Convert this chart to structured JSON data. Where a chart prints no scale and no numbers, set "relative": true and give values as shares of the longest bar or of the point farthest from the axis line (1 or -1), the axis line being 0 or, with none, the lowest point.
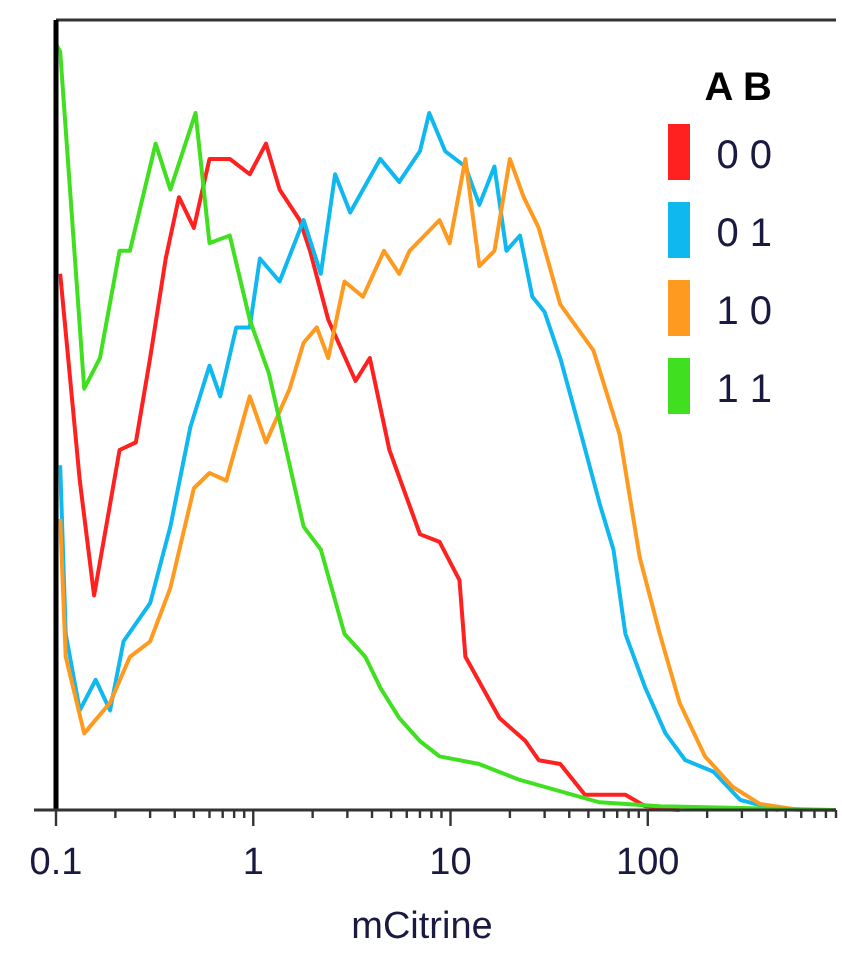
{
  "chart_data": {
    "type": "line",
    "relative": true,
    "xlabel": "mCitrine",
    "log": "x",
    "xlim": [
      0.1,
      900
    ],
    "xticks": [
      0.1,
      {
        "value": 0.2,
        "label": null
      },
      {
        "value": 0.3,
        "label": null
      },
      {
        "value": 0.4,
        "label": null
      },
      {
        "value": 0.5,
        "label": null
      },
      {
        "value": 0.6,
        "label": null
      },
      {
        "value": 0.7,
        "label": null
      },
      {
        "value": 0.8,
        "label": null
      },
      {
        "value": 0.9,
        "label": null
      },
      1,
      {
        "value": 2,
        "label": null
      },
      {
        "value": 3,
        "label": null
      },
      {
        "value": 4,
        "label": null
      },
      {
        "value": 5,
        "label": null
      },
      {
        "value": 6,
        "label": null
      },
      {
        "value": 7,
        "label": null
      },
      {
        "value": 8,
        "label": null
      },
      {
        "value": 9,
        "label": null
      },
      10,
      {
        "value": 20,
        "label": null
      },
      {
        "value": 30,
        "label": null
      },
      {
        "value": 40,
        "label": null
      },
      {
        "value": 50,
        "label": null
      },
      {
        "value": 60,
        "label": null
      },
      {
        "value": 70,
        "label": null
      },
      {
        "value": 80,
        "label": null
      },
      {
        "value": 90,
        "label": null
      },
      100,
      {
        "value": 200,
        "label": null
      },
      {
        "value": 300,
        "label": null
      },
      {
        "value": 400,
        "label": null
      },
      {
        "value": 500,
        "label": null
      },
      {
        "value": 600,
        "label": null
      },
      {
        "value": 700,
        "label": null
      },
      {
        "value": 800,
        "label": null
      },
      {
        "value": 900,
        "label": null
      }
    ],
    "legend": "top right",
    "legend_title": "A B",
    "marker": "none",
    "line_style": "solid",
    "grid": false,
    "series": [
      {
        "name": "0 0",
        "color": "#ff2020",
        "x": [
          0.105,
          0.132,
          0.156,
          0.21,
          0.254,
          0.3,
          0.36,
          0.42,
          0.5,
          0.6,
          0.76,
          0.96,
          1.16,
          1.36,
          1.72,
          1.94,
          2.4,
          3.3,
          3.9,
          4.9,
          7.0,
          8.8,
          11.1,
          11.9,
          17.7,
          24,
          28,
          36,
          48,
          77,
          97,
          145
        ],
        "values": [
          0.7,
          0.43,
          0.28,
          0.47,
          0.48,
          0.59,
          0.72,
          0.8,
          0.76,
          0.85,
          0.85,
          0.83,
          0.87,
          0.81,
          0.77,
          0.73,
          0.64,
          0.56,
          0.59,
          0.47,
          0.36,
          0.35,
          0.3,
          0.2,
          0.12,
          0.09,
          0.065,
          0.06,
          0.02,
          0.02,
          0.005,
          0
        ]
      },
      {
        "name": "0 1",
        "color": "#10b8f0",
        "x": [
          0.105,
          0.112,
          0.132,
          0.159,
          0.188,
          0.22,
          0.3,
          0.38,
          0.48,
          0.6,
          0.68,
          0.82,
          0.96,
          1.08,
          1.36,
          1.8,
          2.2,
          2.6,
          3.1,
          4.4,
          5.5,
          7.0,
          7.8,
          9.4,
          11.9,
          14,
          16.7,
          19.2,
          22.5,
          26,
          30,
          36,
          46,
          57,
          67,
          77,
          97,
          123,
          155,
          215,
          295,
          460
        ],
        "values": [
          0.45,
          0.23,
          0.13,
          0.17,
          0.13,
          0.22,
          0.27,
          0.37,
          0.5,
          0.58,
          0.54,
          0.63,
          0.63,
          0.72,
          0.69,
          0.77,
          0.7,
          0.83,
          0.78,
          0.85,
          0.82,
          0.86,
          0.91,
          0.86,
          0.84,
          0.79,
          0.84,
          0.73,
          0.75,
          0.67,
          0.65,
          0.59,
          0.49,
          0.4,
          0.34,
          0.23,
          0.16,
          0.1,
          0.065,
          0.05,
          0.013,
          0
        ]
      },
      {
        "name": "1 0",
        "color": "#ff9a20",
        "x": [
          0.105,
          0.112,
          0.139,
          0.188,
          0.237,
          0.3,
          0.38,
          0.5,
          0.6,
          0.73,
          0.96,
          1.16,
          1.53,
          1.8,
          2.1,
          2.4,
          2.9,
          3.6,
          4.6,
          5.5,
          6.2,
          8.8,
          9.9,
          11.9,
          14,
          16.7,
          20,
          23.5,
          28,
          36,
          53,
          72,
          91,
          115,
          145,
          195,
          270,
          370,
          590
        ],
        "values": [
          0.38,
          0.2,
          0.1,
          0.14,
          0.2,
          0.22,
          0.29,
          0.42,
          0.44,
          0.43,
          0.54,
          0.48,
          0.55,
          0.61,
          0.63,
          0.59,
          0.69,
          0.67,
          0.73,
          0.7,
          0.73,
          0.77,
          0.74,
          0.85,
          0.71,
          0.73,
          0.85,
          0.8,
          0.76,
          0.66,
          0.6,
          0.49,
          0.33,
          0.23,
          0.14,
          0.07,
          0.03,
          0.008,
          0
        ]
      },
      {
        "name": "1 1",
        "color": "#40e020",
        "x": [
          0.1,
          0.105,
          0.139,
          0.167,
          0.21,
          0.237,
          0.32,
          0.38,
          0.51,
          0.6,
          0.76,
          0.96,
          1.2,
          1.8,
          2.2,
          2.9,
          3.7,
          4.4,
          5.5,
          7.0,
          8.8,
          14,
          22,
          57,
          115,
          900
        ],
        "values": [
          1,
          0.99,
          0.55,
          0.59,
          0.73,
          0.73,
          0.87,
          0.81,
          0.91,
          0.74,
          0.75,
          0.64,
          0.57,
          0.37,
          0.34,
          0.23,
          0.2,
          0.16,
          0.12,
          0.09,
          0.07,
          0.06,
          0.04,
          0.01,
          0.005,
          0
        ]
      }
    ]
  }
}
